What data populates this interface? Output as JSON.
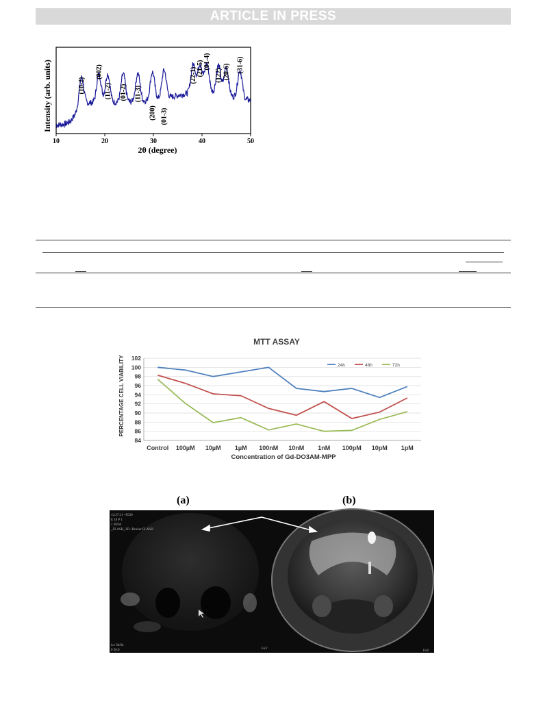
{
  "banner": "ARTICLE IN PRESS",
  "xrd": {
    "chart_data": {
      "type": "line",
      "xlabel": "2θ (degree)",
      "ylabel": "Intensity (arb. units)",
      "xlim": [
        10,
        50
      ],
      "xticks": [
        10,
        20,
        30,
        40,
        50
      ],
      "series_color": "#1a1a9a",
      "peaks": [
        {
          "x": 15.2,
          "label": "(10-2)"
        },
        {
          "x": 18.8,
          "label": "(002)"
        },
        {
          "x": 20.6,
          "label": "(11-2)"
        },
        {
          "x": 23.8,
          "label": "(01-2)"
        },
        {
          "x": 26.8,
          "label": "(11-3)"
        },
        {
          "x": 29.8,
          "label": "(200)"
        },
        {
          "x": 32.2,
          "label": "(01-3)"
        },
        {
          "x": 38.2,
          "label": "(22-1)"
        },
        {
          "x": 39.6,
          "label": "(21-5)"
        },
        {
          "x": 41.0,
          "label": "(01-4)"
        },
        {
          "x": 43.4,
          "label": "(122)"
        },
        {
          "x": 45.0,
          "label": "(20-6)"
        },
        {
          "x": 47.8,
          "label": "(31-6)"
        }
      ]
    }
  },
  "mtt": {
    "chart_data": {
      "type": "line",
      "title": "MTT ASSAY",
      "xlabel": "Concentration of Gd-DO3AM-MPP",
      "ylabel": "PERCENTAGE CELL VIABILITY",
      "ylim": [
        84,
        102
      ],
      "yticks": [
        84,
        86,
        88,
        90,
        92,
        94,
        96,
        98,
        100,
        102
      ],
      "grid": true,
      "legend": "top-right",
      "categories": [
        "Control",
        "100µM",
        "10µM",
        "1µM",
        "100nM",
        "10nM",
        "1nM",
        "100pM",
        "10pM",
        "1pM"
      ],
      "series": [
        {
          "name": "24h",
          "color": "#4f81bd",
          "values": [
            100.0,
            99.4,
            98.0,
            99.0,
            100.0,
            95.4,
            94.7,
            95.4,
            93.4,
            95.8
          ]
        },
        {
          "name": "48h",
          "color": "#c0504d",
          "values": [
            98.3,
            96.5,
            94.2,
            93.8,
            91.0,
            89.5,
            92.5,
            88.8,
            90.2,
            93.3
          ]
        },
        {
          "name": "72h",
          "color": "#9bbb59",
          "values": [
            97.4,
            92.1,
            87.9,
            89.0,
            86.3,
            87.6,
            86.0,
            86.2,
            88.6,
            90.3
          ]
        }
      ]
    }
  },
  "mri": {
    "label_a": "(a)",
    "label_b": "(b)",
    "overlay_a": [
      "12:27:11 +0530",
      "E 10 P 1",
      "1 30/64",
      "_FLASH_3D / Bruker FLASH",
      "ice 30/64",
      "0 50.0"
    ],
    "fov": "FoV"
  }
}
